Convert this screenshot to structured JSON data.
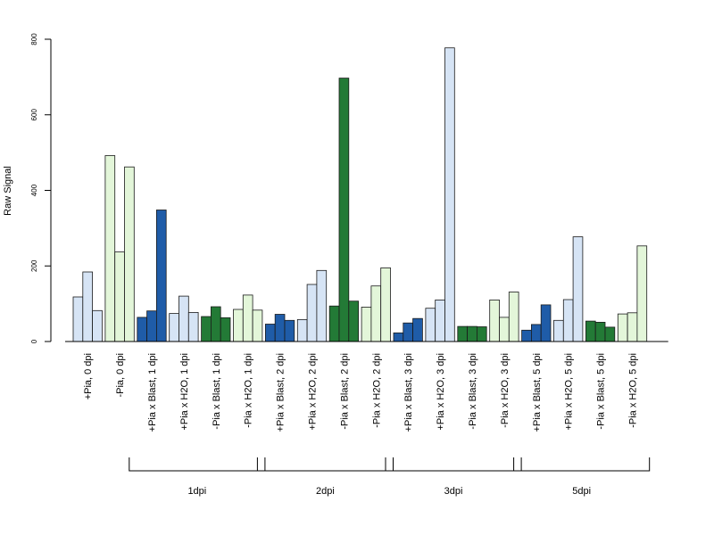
{
  "chart_data": {
    "type": "bar",
    "ylabel": "Raw Signal",
    "ylim": [
      0,
      800
    ],
    "yticks": [
      0,
      200,
      400,
      600,
      800
    ],
    "colors": {
      "light_blue": "#d6e4f5",
      "light_green": "#e3f6d9",
      "dark_blue": "#1f5ca8",
      "dark_green": "#237a36"
    },
    "groups": [
      {
        "label": "+Pia, 0 dpi",
        "color": "light_blue",
        "values": [
          118,
          184,
          82
        ]
      },
      {
        "label": "-Pia, 0 dpi",
        "color": "light_green",
        "values": [
          492,
          237,
          462
        ]
      },
      {
        "label": "+Pia x Blast, 1 dpi",
        "color": "dark_blue",
        "values": [
          64,
          81,
          348
        ]
      },
      {
        "label": "+Pia x H2O, 1 dpi",
        "color": "light_blue",
        "values": [
          74,
          120,
          77
        ]
      },
      {
        "label": "-Pia x Blast, 1 dpi",
        "color": "dark_green",
        "values": [
          66,
          92,
          63
        ]
      },
      {
        "label": "-Pia x H2O, 1 dpi",
        "color": "light_green",
        "values": [
          85,
          123,
          83
        ]
      },
      {
        "label": "+Pia x Blast, 2 dpi",
        "color": "dark_blue",
        "values": [
          46,
          72,
          56
        ]
      },
      {
        "label": "+Pia x H2O, 2 dpi",
        "color": "light_blue",
        "values": [
          58,
          151,
          188
        ]
      },
      {
        "label": "-Pia x Blast, 2 dpi",
        "color": "dark_green",
        "values": [
          94,
          697,
          107
        ]
      },
      {
        "label": "-Pia x H2O, 2 dpi",
        "color": "light_green",
        "values": [
          91,
          147,
          195
        ]
      },
      {
        "label": "+Pia x Blast, 3 dpi",
        "color": "dark_blue",
        "values": [
          23,
          49,
          61
        ]
      },
      {
        "label": "+Pia x H2O, 3 dpi",
        "color": "light_blue",
        "values": [
          88,
          110,
          777
        ]
      },
      {
        "label": "-Pia x Blast, 3 dpi",
        "color": "dark_green",
        "values": [
          40,
          40,
          39
        ]
      },
      {
        "label": "-Pia x H2O, 3 dpi",
        "color": "light_green",
        "values": [
          110,
          64,
          131
        ]
      },
      {
        "label": "+Pia x Blast, 5 dpi",
        "color": "dark_blue",
        "values": [
          30,
          45,
          97
        ]
      },
      {
        "label": "+Pia x H2O, 5 dpi",
        "color": "light_blue",
        "values": [
          56,
          111,
          277
        ]
      },
      {
        "label": "-Pia x Blast, 5 dpi",
        "color": "dark_green",
        "values": [
          54,
          51,
          38
        ]
      },
      {
        "label": "-Pia x H2O, 5 dpi",
        "color": "light_green",
        "values": [
          73,
          76,
          253
        ]
      }
    ],
    "time_brackets": [
      {
        "label": "1dpi",
        "from_group": 2,
        "to_group": 5
      },
      {
        "label": "2dpi",
        "from_group": 6,
        "to_group": 9
      },
      {
        "label": "3dpi",
        "from_group": 10,
        "to_group": 13
      },
      {
        "label": "5dpi",
        "from_group": 14,
        "to_group": 17
      }
    ]
  }
}
